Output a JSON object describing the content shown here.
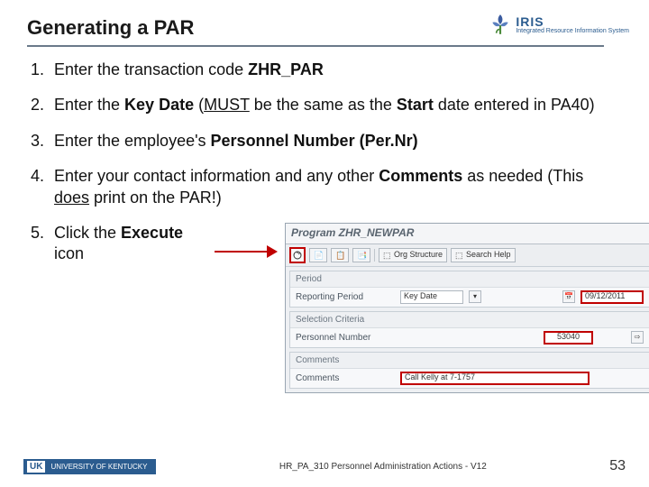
{
  "title": "Generating a PAR",
  "logo": {
    "brand": "IRIS",
    "tagline": "Integrated Resource\nInformation System"
  },
  "steps": [
    {
      "num": "1.",
      "parts": [
        {
          "t": "Enter the transaction code "
        },
        {
          "t": "ZHR_PAR",
          "b": true
        }
      ]
    },
    {
      "num": "2.",
      "parts": [
        {
          "t": "Enter the "
        },
        {
          "t": "Key Date",
          "b": true
        },
        {
          "t": " ("
        },
        {
          "t": "MUST",
          "u": true
        },
        {
          "t": " be the same as the "
        },
        {
          "t": "Start",
          "b": true
        },
        {
          "t": " date entered in PA40)"
        }
      ]
    },
    {
      "num": "3.",
      "parts": [
        {
          "t": "Enter the employee's "
        },
        {
          "t": "Personnel Number (Per.Nr)",
          "b": true
        }
      ]
    },
    {
      "num": "4.",
      "parts": [
        {
          "t": "Enter your contact information and any other "
        },
        {
          "t": "Comments",
          "b": true
        },
        {
          "t": " as needed (This "
        },
        {
          "t": "does",
          "u": true
        },
        {
          "t": " print on the PAR!)"
        }
      ]
    },
    {
      "num": "5.",
      "parts": [
        {
          "t": "Click the "
        },
        {
          "t": "Execute",
          "b": true
        },
        {
          "t": " icon"
        }
      ]
    }
  ],
  "sap": {
    "program_title": "Program ZHR_NEWPAR",
    "toolbar": {
      "org_structure": "Org Structure",
      "search_help": "Search Help"
    },
    "period": {
      "section": "Period",
      "reporting_period": "Reporting Period",
      "keydate": "Key Date",
      "keydate_value": "09/12/2011"
    },
    "selection": {
      "section": "Selection Criteria",
      "pernr": "Personnel Number",
      "pernr_value": "53040"
    },
    "comments": {
      "section": "Comments",
      "label": "Comments",
      "value": "Call Kelly at 7-1757"
    }
  },
  "footer": {
    "uk": "UK",
    "uk_name": "UNIVERSITY OF KENTUCKY",
    "caption": "HR_PA_310 Personnel Administration Actions - V12",
    "page": "53"
  },
  "colors": {
    "highlight": "#c00000",
    "header_rule": "#6a7a8a",
    "uk_blue": "#2b5c8f"
  }
}
